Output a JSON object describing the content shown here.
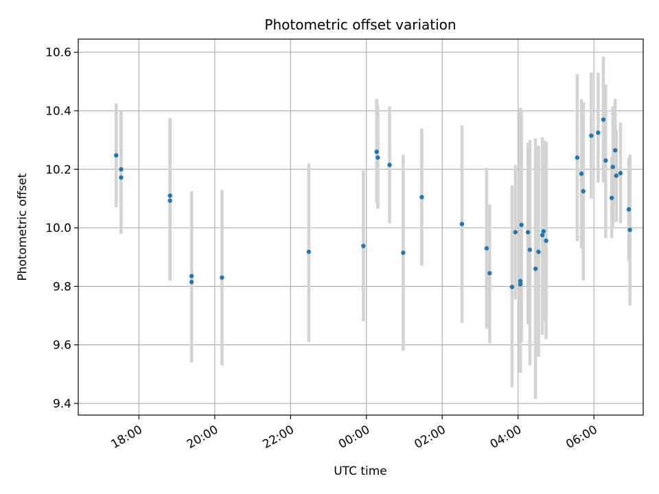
{
  "chart_data": {
    "type": "scatter",
    "title": "Photometric offset variation",
    "xlabel": "UTC time",
    "ylabel": "Photometric offset",
    "x_unit": "hours relative to 00:00 UTC",
    "xlim": [
      -7.6,
      7.3
    ],
    "ylim": [
      9.36,
      10.645
    ],
    "yticks": [
      9.4,
      9.6,
      9.8,
      10.0,
      10.2,
      10.4,
      10.6
    ],
    "ytick_labels": [
      "9.4",
      "9.6",
      "9.8",
      "10.0",
      "10.2",
      "10.4",
      "10.6"
    ],
    "xticks": [
      -6,
      -4,
      -2,
      0,
      2,
      4,
      6
    ],
    "xtick_labels": [
      "18:00",
      "20:00",
      "22:00",
      "00:00",
      "02:00",
      "04:00",
      "06:00"
    ],
    "grid": true,
    "colors": {
      "point": "#1f77b4",
      "errorbar": "#d3d3d3",
      "grid": "#b0b0b0"
    },
    "series": [
      {
        "points": [
          {
            "t": -6.6,
            "y": 10.248,
            "lo": 10.07,
            "hi": 10.425
          },
          {
            "t": -6.47,
            "y": 10.2,
            "lo": 9.98,
            "hi": 10.4
          },
          {
            "t": -6.47,
            "y": 10.172,
            "lo": 9.98,
            "hi": 10.4
          },
          {
            "t": -5.18,
            "y": 10.11,
            "lo": 9.82,
            "hi": 10.375
          },
          {
            "t": -5.18,
            "y": 10.093,
            "lo": 9.82,
            "hi": 10.375
          },
          {
            "t": -4.61,
            "y": 9.835,
            "lo": 9.54,
            "hi": 10.125
          },
          {
            "t": -4.61,
            "y": 9.815,
            "lo": 9.54,
            "hi": 10.125
          },
          {
            "t": -3.81,
            "y": 9.83,
            "lo": 9.53,
            "hi": 10.13
          },
          {
            "t": -1.52,
            "y": 9.918,
            "lo": 9.61,
            "hi": 10.22
          },
          {
            "t": -0.08,
            "y": 9.938,
            "lo": 9.68,
            "hi": 10.195
          },
          {
            "t": 0.27,
            "y": 10.26,
            "lo": 10.085,
            "hi": 10.44
          },
          {
            "t": 0.3,
            "y": 10.24,
            "lo": 10.065,
            "hi": 10.42
          },
          {
            "t": 0.61,
            "y": 10.215,
            "lo": 10.015,
            "hi": 10.415
          },
          {
            "t": 0.97,
            "y": 9.915,
            "lo": 9.58,
            "hi": 10.25
          },
          {
            "t": 1.46,
            "y": 10.105,
            "lo": 9.87,
            "hi": 10.34
          },
          {
            "t": 2.52,
            "y": 10.013,
            "lo": 9.675,
            "hi": 10.35
          },
          {
            "t": 3.17,
            "y": 9.93,
            "lo": 9.655,
            "hi": 10.205
          },
          {
            "t": 3.25,
            "y": 9.845,
            "lo": 9.605,
            "hi": 10.08
          },
          {
            "t": 3.84,
            "y": 9.798,
            "lo": 9.455,
            "hi": 10.145
          },
          {
            "t": 3.93,
            "y": 9.985,
            "lo": 9.755,
            "hi": 10.215
          },
          {
            "t": 4.06,
            "y": 9.818,
            "lo": 9.505,
            "hi": 10.41
          },
          {
            "t": 4.06,
            "y": 9.807,
            "lo": 9.505,
            "hi": 10.41
          },
          {
            "t": 4.09,
            "y": 10.01,
            "lo": 9.61,
            "hi": 10.405
          },
          {
            "t": 4.26,
            "y": 9.985,
            "lo": 9.67,
            "hi": 10.29
          },
          {
            "t": 4.31,
            "y": 9.925,
            "lo": 9.53,
            "hi": 10.3
          },
          {
            "t": 4.46,
            "y": 9.86,
            "lo": 9.415,
            "hi": 10.305
          },
          {
            "t": 4.54,
            "y": 9.918,
            "lo": 9.56,
            "hi": 10.28
          },
          {
            "t": 4.64,
            "y": 9.975,
            "lo": 9.635,
            "hi": 10.31
          },
          {
            "t": 4.67,
            "y": 9.988,
            "lo": 9.68,
            "hi": 10.3
          },
          {
            "t": 4.74,
            "y": 9.956,
            "lo": 9.62,
            "hi": 10.295
          },
          {
            "t": 5.56,
            "y": 10.24,
            "lo": 9.955,
            "hi": 10.525
          },
          {
            "t": 5.67,
            "y": 10.185,
            "lo": 9.93,
            "hi": 10.44
          },
          {
            "t": 5.72,
            "y": 10.125,
            "lo": 9.82,
            "hi": 10.43
          },
          {
            "t": 5.93,
            "y": 10.315,
            "lo": 10.1,
            "hi": 10.53
          },
          {
            "t": 6.11,
            "y": 10.325,
            "lo": 10.155,
            "hi": 10.53
          },
          {
            "t": 6.25,
            "y": 10.37,
            "lo": 10.155,
            "hi": 10.585
          },
          {
            "t": 6.31,
            "y": 10.23,
            "lo": 9.965,
            "hi": 10.49
          },
          {
            "t": 6.47,
            "y": 10.102,
            "lo": 9.965,
            "hi": 10.24
          },
          {
            "t": 6.5,
            "y": 10.208,
            "lo": 10.0,
            "hi": 10.415
          },
          {
            "t": 6.56,
            "y": 10.265,
            "lo": 10.08,
            "hi": 10.44
          },
          {
            "t": 6.59,
            "y": 10.178,
            "lo": 10.02,
            "hi": 10.335
          },
          {
            "t": 6.7,
            "y": 10.187,
            "lo": 10.015,
            "hi": 10.36
          },
          {
            "t": 6.92,
            "y": 10.063,
            "lo": 9.885,
            "hi": 10.24
          },
          {
            "t": 6.95,
            "y": 9.993,
            "lo": 9.735,
            "hi": 10.25
          }
        ]
      }
    ]
  }
}
